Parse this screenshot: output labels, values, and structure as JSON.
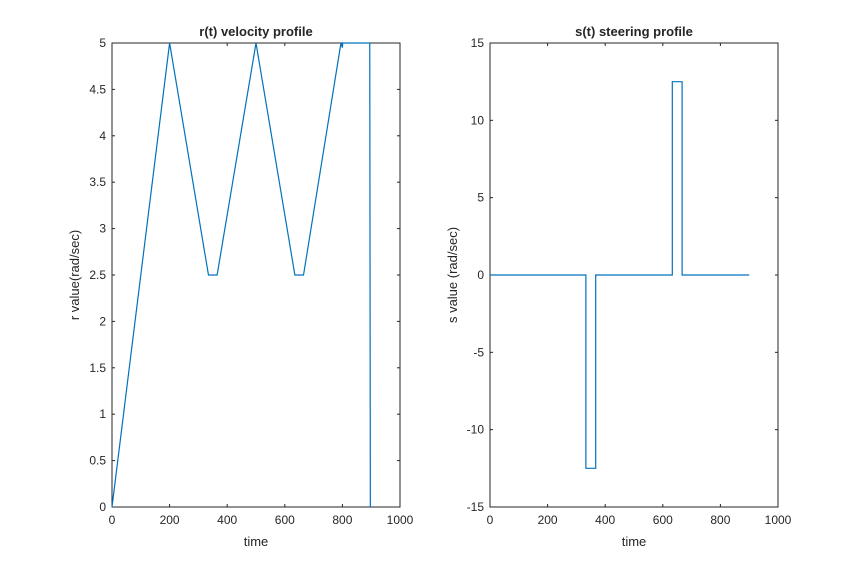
{
  "chart_data": [
    {
      "type": "line",
      "title": "r(t) velocity profile",
      "xlabel": "time",
      "ylabel": "r value(rad/sec)",
      "xlim": [
        0,
        1000
      ],
      "ylim": [
        0,
        5
      ],
      "xticks": [
        0,
        200,
        400,
        600,
        800,
        1000
      ],
      "yticks": [
        0,
        0.5,
        1,
        1.5,
        2,
        2.5,
        3,
        3.5,
        4,
        4.5,
        5
      ],
      "grid": false,
      "color": "#0072BD",
      "series": [
        {
          "x": [
            0,
            200,
            335,
            365,
            500,
            635,
            665,
            795,
            800,
            801,
            805,
            895,
            895,
            897
          ],
          "y": [
            0,
            5,
            2.5,
            2.5,
            5,
            2.5,
            2.5,
            5,
            4.95,
            5,
            5,
            5,
            5,
            0
          ]
        }
      ]
    },
    {
      "type": "line",
      "title": "s(t) steering profile",
      "xlabel": "time",
      "ylabel": "s value (rad/sec)",
      "xlim": [
        0,
        1000
      ],
      "ylim": [
        -15,
        15
      ],
      "xticks": [
        0,
        200,
        400,
        600,
        800,
        1000
      ],
      "yticks": [
        -15,
        -10,
        -5,
        0,
        5,
        10,
        15
      ],
      "grid": false,
      "color": "#0072BD",
      "series": [
        {
          "x": [
            0,
            333,
            333,
            367,
            367,
            633,
            633,
            667,
            667,
            900
          ],
          "y": [
            0,
            0,
            -12.5,
            -12.5,
            0,
            0,
            12.5,
            12.5,
            0,
            0
          ]
        }
      ]
    }
  ]
}
